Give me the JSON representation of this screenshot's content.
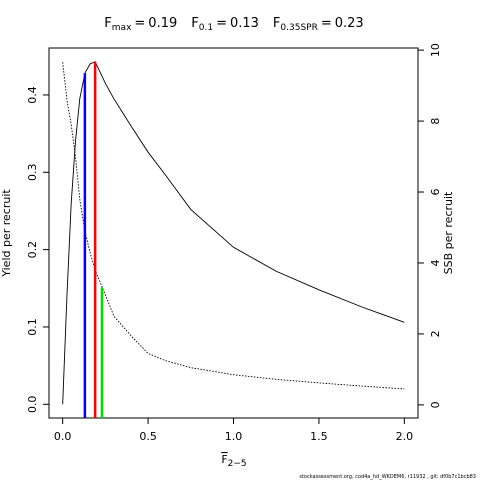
{
  "chart_data": {
    "type": "line",
    "relation": "=",
    "reference_lines": [
      {
        "name": "F",
        "sub": "max",
        "value": 0.19,
        "top": 0.443,
        "color": "#ff0000"
      },
      {
        "name": "F",
        "sub": "0.1",
        "value": 0.13,
        "top": 0.428,
        "color": "#0000ff"
      },
      {
        "name": "F",
        "sub": "0.35SPR",
        "value": 0.23,
        "top": 0.151,
        "color": "#00dd00"
      }
    ],
    "xlabel": "F",
    "xlabel_sub": "2−5",
    "ylabel": "Yield per recruit",
    "y2label": "SSB per recruit",
    "footer": "stockassessment.org, cod4a_hd_WKDEM6, r11932 , git: df0b7c1bcb83",
    "x": [
      0,
      0.025,
      0.05,
      0.075,
      0.1,
      0.13,
      0.16,
      0.19,
      0.25,
      0.3,
      0.4,
      0.5,
      0.6,
      0.75,
      1.0,
      1.25,
      1.5,
      1.75,
      2.0
    ],
    "series": [
      {
        "name": "Yield per recruit",
        "color": "#000000",
        "dash": "none",
        "values": [
          0,
          0.14,
          0.26,
          0.34,
          0.395,
          0.428,
          0.44,
          0.443,
          0.415,
          0.395,
          0.36,
          0.326,
          0.297,
          0.252,
          0.203,
          0.172,
          0.148,
          0.126,
          0.106
        ]
      },
      {
        "name": "SSB per recruit",
        "color": "#000000",
        "dash": "1.5 1.5",
        "axis": "y2",
        "values": [
          9.66,
          8.6,
          7.9,
          7.0,
          5.8,
          4.9,
          4.3,
          3.8,
          3.1,
          2.5,
          1.95,
          1.45,
          1.25,
          1.05,
          0.85,
          0.72,
          0.62,
          0.53,
          0.45
        ]
      }
    ],
    "xlim": [
      -0.08,
      2.08
    ],
    "xticks": [
      {
        "value": 0,
        "label": "0.0"
      },
      0.5,
      {
        "value": 1,
        "label": "1.0"
      },
      1.5,
      {
        "value": 2,
        "label": "2.0"
      }
    ],
    "ylim": [
      -0.0177,
      0.4607
    ],
    "yticks": [
      {
        "value": 0,
        "label": "0.0"
      },
      0.1,
      0.2,
      0.3,
      0.4
    ],
    "y2lim": [
      -0.37,
      10.06
    ],
    "y2ticks": [
      0,
      2,
      4,
      6,
      8,
      10
    ]
  }
}
